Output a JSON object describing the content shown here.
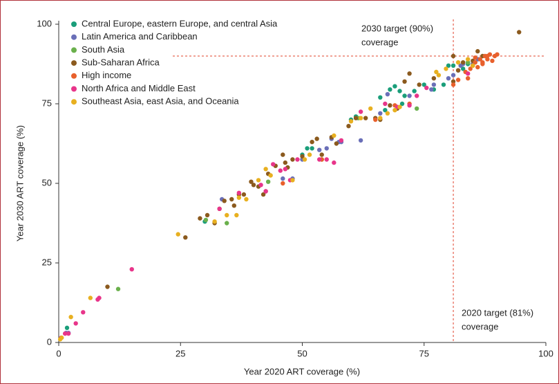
{
  "chart_data": {
    "type": "scatter",
    "x_label": "Year 2020 ART coverage (%)",
    "y_label": "Year 2030 ART coverage (%)",
    "xlim": [
      0,
      100
    ],
    "ylim": [
      0,
      100
    ],
    "xticks": [
      0,
      25,
      50,
      75,
      100
    ],
    "yticks": [
      0,
      25,
      50,
      75,
      100
    ],
    "grid": false,
    "legend": "top-left",
    "reference_lines": {
      "x": 81,
      "y": 90,
      "color": "#e0402a"
    },
    "annotations": [
      {
        "lines": [
          "2030 target (90%)",
          "coverage"
        ]
      },
      {
        "lines": [
          "2020 target (81%)",
          "coverage"
        ]
      }
    ],
    "series": [
      {
        "name": "Central Europe, eastern Europe, and central Asia",
        "color": "#1a9e7a",
        "x": [
          1.7,
          68,
          69,
          70,
          66,
          67,
          70.5,
          73,
          75,
          77,
          79,
          80,
          81,
          84,
          60,
          61,
          50,
          51,
          52,
          71,
          83,
          86,
          30
        ],
        "values": [
          4.6,
          79.5,
          80.5,
          79,
          77,
          73,
          75,
          79,
          81,
          79.5,
          81,
          87,
          87,
          87.5,
          70,
          71,
          59,
          61,
          61,
          77.5,
          86,
          89,
          38
        ]
      },
      {
        "name": "Latin America and Caribbean",
        "color": "#6a6fb8",
        "x": [
          1.5,
          2,
          33.5,
          46,
          50,
          53.5,
          55,
          57.5,
          58,
          62,
          66,
          67.5,
          72,
          76.5,
          77,
          80,
          82,
          82.5,
          83,
          85,
          86,
          81,
          48,
          56
        ],
        "values": [
          3,
          3,
          45,
          51.5,
          57.5,
          60.5,
          61,
          63,
          63,
          63.5,
          72,
          78,
          77.5,
          79.5,
          81,
          83,
          85.5,
          87,
          87.5,
          87.5,
          89,
          84,
          51.5,
          64
        ]
      },
      {
        "name": "South Asia",
        "color": "#6ab04c",
        "x": [
          12.2,
          34.5,
          43,
          54,
          73.5,
          61.5,
          84,
          30.2
        ],
        "values": [
          16.8,
          37.5,
          50.5,
          57.5,
          73.5,
          70.5,
          88,
          38.5
        ]
      },
      {
        "name": "Sub-Saharan Africa",
        "color": "#8b5a1e",
        "x": [
          10,
          26,
          29,
          30.5,
          32,
          33,
          34,
          35.5,
          37,
          38,
          39.5,
          40,
          41,
          42,
          42.5,
          43,
          44.5,
          46,
          47,
          46.5,
          48,
          50,
          52,
          53,
          54,
          56,
          57,
          59.5,
          61,
          63,
          65,
          66,
          68,
          69.5,
          71,
          72,
          74,
          77,
          81,
          81,
          82,
          83,
          86,
          87,
          94.5,
          85,
          36
        ],
        "values": [
          17.5,
          33,
          39,
          40,
          37.5,
          42,
          44.5,
          45,
          46.5,
          46.5,
          50.5,
          49.5,
          49,
          46.5,
          47.5,
          53,
          55.5,
          59,
          55,
          56.5,
          57.5,
          58.5,
          63,
          64,
          59,
          64.5,
          62.5,
          68,
          70.5,
          70.5,
          70.5,
          70,
          74.5,
          73.5,
          82,
          84.5,
          81,
          83,
          82,
          90,
          85.5,
          88,
          91.5,
          90,
          97.5,
          88.5,
          43
        ]
      },
      {
        "name": "High income",
        "color": "#e8602c",
        "x": [
          46,
          54,
          65,
          69,
          72,
          81,
          82,
          83.5,
          84.5,
          85,
          85.5,
          86,
          86.5,
          87,
          87.5,
          88,
          88.5,
          89,
          89.5,
          90,
          84,
          85.5,
          87,
          88
        ],
        "values": [
          50,
          57.5,
          70,
          74.5,
          75,
          81,
          82.5,
          85,
          86,
          87,
          88,
          86.5,
          89,
          87.5,
          90,
          89,
          90.5,
          88.5,
          90,
          90.5,
          83,
          89.5,
          88,
          90
        ]
      },
      {
        "name": "North Africa and Middle East",
        "color": "#e8358a",
        "x": [
          0.5,
          1.3,
          2,
          3.5,
          5,
          8,
          8.3,
          15,
          33,
          37,
          42.5,
          44,
          45.5,
          47.5,
          49,
          53.5,
          55,
          56.5,
          58,
          62,
          67,
          69.5,
          72,
          73.5,
          75.5,
          84,
          46.5,
          41.5
        ],
        "values": [
          1.5,
          2.8,
          2.8,
          6,
          9.5,
          13.5,
          14,
          23,
          42,
          47,
          47.5,
          56,
          54,
          51,
          57.5,
          57.5,
          57.5,
          56.5,
          63.5,
          72.5,
          75,
          74,
          74.5,
          77.5,
          80,
          84.5,
          54.5,
          49.5
        ]
      },
      {
        "name": "Southeast Asia, east Asia, and Oceania",
        "color": "#e8b020",
        "x": [
          0.3,
          0.6,
          2.5,
          6.5,
          24.5,
          32,
          34.5,
          38.5,
          42.5,
          41,
          43.5,
          48,
          50.5,
          51.5,
          56.5,
          60,
          62,
          64,
          66,
          67.5,
          69,
          70,
          77.5,
          78,
          79.5,
          82,
          85,
          84,
          36.5,
          37
        ],
        "values": [
          1,
          1.5,
          8,
          14,
          34,
          38,
          40,
          45,
          54.5,
          51,
          52.5,
          51,
          57.5,
          59,
          65,
          69.5,
          70.5,
          73.5,
          70.5,
          72,
          73,
          74,
          85,
          84,
          86,
          88,
          87,
          89,
          40,
          45.5
        ]
      }
    ]
  }
}
